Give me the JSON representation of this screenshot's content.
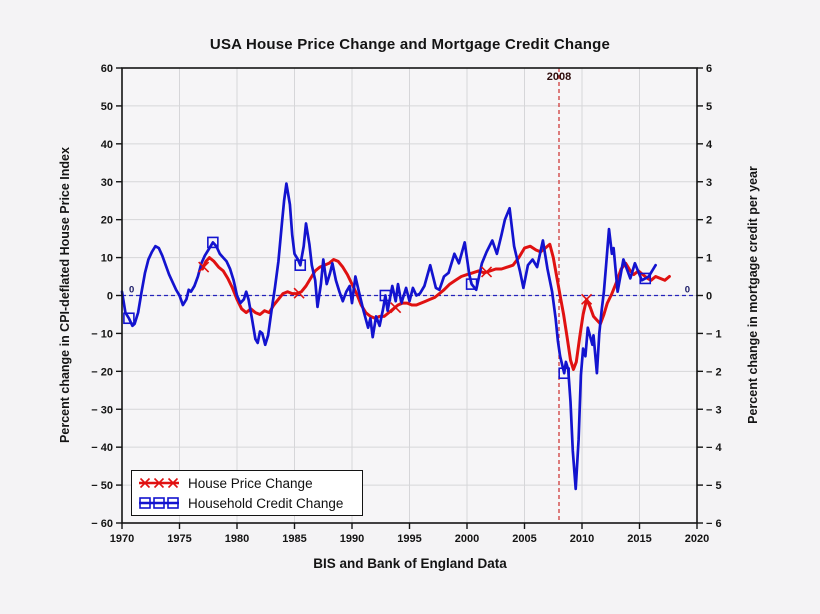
{
  "page": {
    "background": "#f4f3f5"
  },
  "chart": {
    "annotation_2008_color": "#2e0d0c",
    "frame_color": "#141414",
    "grid_color": "#d6d6d9",
    "plot_bg": "#f6f5f7"
  },
  "chart_data": {
    "type": "line",
    "title": "USA House Price Change and Mortgage Credit Change",
    "source": "BIS and Bank of England Data",
    "x_axis": {
      "min": 1970,
      "max": 2020,
      "ticks": [
        1970,
        1975,
        1980,
        1985,
        1990,
        1995,
        2000,
        2005,
        2010,
        2015,
        2020
      ]
    },
    "left_y_axis": {
      "label": "Percent change in CPI-deflated House Price Index",
      "min": -60,
      "max": 60,
      "tick_step": 10,
      "ticks": [
        60,
        50,
        40,
        30,
        20,
        10,
        0,
        -10,
        -20,
        -30,
        -40,
        -50,
        -60
      ]
    },
    "right_y_axis": {
      "label": "Percent change in mortgage credit per year",
      "min": -6,
      "max": 6,
      "tick_step": 1,
      "ticks": [
        6,
        5,
        4,
        3,
        2,
        1,
        0,
        -1,
        -2,
        -3,
        -4,
        -5,
        -6
      ]
    },
    "grid": true,
    "legend_position": "bottom-left",
    "reference_lines": [
      {
        "type": "vertical",
        "x": 2008,
        "label": "2008",
        "style": "dashed",
        "color": "#cf3a3a",
        "label_color": "#2e0d0c"
      },
      {
        "type": "horizontal",
        "y": 0,
        "style": "dashed",
        "color": "#2424bb",
        "end_label": "0",
        "end_label_color": "#1a1a66"
      }
    ],
    "series": [
      {
        "name": "House Price Change",
        "axis": "left",
        "color": "#e01111",
        "marker": "x",
        "line_width": 3,
        "points": [
          [
            1977.0,
            7.0
          ],
          [
            1977.3,
            9.0
          ],
          [
            1977.6,
            10.0
          ],
          [
            1978.0,
            9.0
          ],
          [
            1978.4,
            7.5
          ],
          [
            1978.8,
            6.5
          ],
          [
            1979.2,
            4.5
          ],
          [
            1979.6,
            2.0
          ],
          [
            1980.0,
            -1.0
          ],
          [
            1980.4,
            -3.5
          ],
          [
            1980.8,
            -4.5
          ],
          [
            1981.2,
            -3.5
          ],
          [
            1981.6,
            -4.5
          ],
          [
            1982.0,
            -5.0
          ],
          [
            1982.4,
            -4.0
          ],
          [
            1982.8,
            -4.5
          ],
          [
            1983.2,
            -2.5
          ],
          [
            1983.6,
            -1.0
          ],
          [
            1984.0,
            0.5
          ],
          [
            1984.4,
            1.0
          ],
          [
            1984.8,
            0.5
          ],
          [
            1985.2,
            0.5
          ],
          [
            1985.6,
            1.0
          ],
          [
            1986.0,
            2.5
          ],
          [
            1986.4,
            4.5
          ],
          [
            1986.8,
            6.5
          ],
          [
            1987.2,
            7.5
          ],
          [
            1987.6,
            8.0
          ],
          [
            1988.0,
            8.5
          ],
          [
            1988.4,
            9.5
          ],
          [
            1988.8,
            9.0
          ],
          [
            1989.2,
            7.5
          ],
          [
            1989.6,
            5.5
          ],
          [
            1990.0,
            3.0
          ],
          [
            1990.4,
            0.5
          ],
          [
            1990.8,
            -2.5
          ],
          [
            1991.2,
            -4.5
          ],
          [
            1991.6,
            -5.5
          ],
          [
            1992.0,
            -6.0
          ],
          [
            1992.4,
            -5.5
          ],
          [
            1992.8,
            -5.5
          ],
          [
            1993.2,
            -4.5
          ],
          [
            1993.6,
            -3.5
          ],
          [
            1994.0,
            -2.5
          ],
          [
            1994.4,
            -2.0
          ],
          [
            1994.8,
            -2.0
          ],
          [
            1995.2,
            -2.5
          ],
          [
            1995.6,
            -2.5
          ],
          [
            1996.0,
            -2.0
          ],
          [
            1996.4,
            -1.5
          ],
          [
            1996.8,
            -1.0
          ],
          [
            1997.2,
            -0.5
          ],
          [
            1997.6,
            0.5
          ],
          [
            1998.0,
            1.5
          ],
          [
            1998.5,
            3.0
          ],
          [
            1999.0,
            4.0
          ],
          [
            1999.5,
            5.0
          ],
          [
            2000.0,
            5.5
          ],
          [
            2000.5,
            6.0
          ],
          [
            2001.0,
            6.5
          ],
          [
            2001.5,
            6.0
          ],
          [
            2002.0,
            6.5
          ],
          [
            2002.5,
            7.0
          ],
          [
            2003.0,
            7.0
          ],
          [
            2003.5,
            7.5
          ],
          [
            2004.0,
            8.0
          ],
          [
            2004.5,
            10.0
          ],
          [
            2005.0,
            12.5
          ],
          [
            2005.5,
            13.0
          ],
          [
            2006.0,
            12.0
          ],
          [
            2006.4,
            11.5
          ],
          [
            2006.8,
            12.5
          ],
          [
            2007.2,
            13.5
          ],
          [
            2007.5,
            10.0
          ],
          [
            2007.8,
            5.0
          ],
          [
            2008.1,
            0.0
          ],
          [
            2008.4,
            -5.0
          ],
          [
            2008.7,
            -11.0
          ],
          [
            2009.0,
            -17.0
          ],
          [
            2009.25,
            -19.5
          ],
          [
            2009.5,
            -17.5
          ],
          [
            2009.8,
            -11.0
          ],
          [
            2010.1,
            -5.0
          ],
          [
            2010.4,
            -1.0
          ],
          [
            2010.7,
            -3.0
          ],
          [
            2011.0,
            -5.5
          ],
          [
            2011.3,
            -6.5
          ],
          [
            2011.6,
            -7.5
          ],
          [
            2011.9,
            -5.0
          ],
          [
            2012.2,
            -2.0
          ],
          [
            2012.6,
            0.5
          ],
          [
            2013.0,
            3.5
          ],
          [
            2013.4,
            7.0
          ],
          [
            2013.8,
            8.5
          ],
          [
            2014.2,
            6.5
          ],
          [
            2014.5,
            5.5
          ],
          [
            2014.9,
            6.5
          ],
          [
            2015.3,
            5.5
          ],
          [
            2015.7,
            4.5
          ],
          [
            2016.0,
            4.0
          ],
          [
            2016.4,
            5.0
          ],
          [
            2016.8,
            4.5
          ],
          [
            2017.2,
            4.0
          ],
          [
            2017.6,
            5.0
          ]
        ],
        "marker_points": [
          [
            1977.1,
            7.5
          ],
          [
            1985.4,
            0.6
          ],
          [
            1993.8,
            -3.2
          ],
          [
            2001.7,
            6.2
          ],
          [
            2010.4,
            -1.0
          ]
        ]
      },
      {
        "name": "Household Credit Change",
        "axis": "right",
        "color": "#1313cf",
        "marker": "square",
        "line_width": 2.7,
        "points": [
          [
            1970.0,
            0.1
          ],
          [
            1970.3,
            -0.45
          ],
          [
            1970.6,
            -0.6
          ],
          [
            1970.9,
            -0.8
          ],
          [
            1971.1,
            -0.75
          ],
          [
            1971.4,
            -0.45
          ],
          [
            1971.7,
            0.1
          ],
          [
            1972.0,
            0.6
          ],
          [
            1972.3,
            0.95
          ],
          [
            1972.6,
            1.15
          ],
          [
            1972.9,
            1.3
          ],
          [
            1973.2,
            1.25
          ],
          [
            1973.5,
            1.05
          ],
          [
            1973.8,
            0.8
          ],
          [
            1974.1,
            0.55
          ],
          [
            1974.4,
            0.35
          ],
          [
            1974.7,
            0.15
          ],
          [
            1975.0,
            0.0
          ],
          [
            1975.3,
            -0.25
          ],
          [
            1975.6,
            -0.1
          ],
          [
            1975.8,
            0.15
          ],
          [
            1976.0,
            0.1
          ],
          [
            1976.3,
            0.25
          ],
          [
            1976.6,
            0.5
          ],
          [
            1976.9,
            0.85
          ],
          [
            1977.2,
            1.05
          ],
          [
            1977.5,
            1.2
          ],
          [
            1977.9,
            1.4
          ],
          [
            1978.2,
            1.3
          ],
          [
            1978.5,
            1.1
          ],
          [
            1978.8,
            1.0
          ],
          [
            1979.1,
            0.9
          ],
          [
            1979.4,
            0.7
          ],
          [
            1979.7,
            0.4
          ],
          [
            1980.0,
            0.0
          ],
          [
            1980.3,
            -0.2
          ],
          [
            1980.6,
            -0.1
          ],
          [
            1980.8,
            0.1
          ],
          [
            1981.0,
            -0.1
          ],
          [
            1981.3,
            -0.6
          ],
          [
            1981.6,
            -1.15
          ],
          [
            1981.8,
            -1.25
          ],
          [
            1982.0,
            -0.95
          ],
          [
            1982.2,
            -1.0
          ],
          [
            1982.45,
            -1.3
          ],
          [
            1982.7,
            -1.05
          ],
          [
            1983.0,
            -0.4
          ],
          [
            1983.3,
            0.2
          ],
          [
            1983.6,
            0.9
          ],
          [
            1983.9,
            1.9
          ],
          [
            1984.1,
            2.5
          ],
          [
            1984.3,
            2.95
          ],
          [
            1984.6,
            2.4
          ],
          [
            1984.8,
            1.6
          ],
          [
            1985.0,
            1.1
          ],
          [
            1985.3,
            0.95
          ],
          [
            1985.5,
            0.8
          ],
          [
            1985.8,
            1.3
          ],
          [
            1986.0,
            1.9
          ],
          [
            1986.3,
            1.35
          ],
          [
            1986.5,
            0.8
          ],
          [
            1986.8,
            0.4
          ],
          [
            1987.0,
            -0.3
          ],
          [
            1987.3,
            0.3
          ],
          [
            1987.5,
            0.95
          ],
          [
            1987.8,
            0.3
          ],
          [
            1988.1,
            0.6
          ],
          [
            1988.3,
            0.85
          ],
          [
            1988.6,
            0.4
          ],
          [
            1988.9,
            0.1
          ],
          [
            1989.2,
            -0.15
          ],
          [
            1989.5,
            0.1
          ],
          [
            1989.8,
            0.25
          ],
          [
            1990.0,
            -0.2
          ],
          [
            1990.3,
            0.5
          ],
          [
            1990.6,
            0.1
          ],
          [
            1991.0,
            -0.4
          ],
          [
            1991.4,
            -0.85
          ],
          [
            1991.6,
            -0.6
          ],
          [
            1991.8,
            -1.1
          ],
          [
            1992.1,
            -0.55
          ],
          [
            1992.4,
            -0.8
          ],
          [
            1992.7,
            -0.35
          ],
          [
            1992.9,
            0.0
          ],
          [
            1993.1,
            -0.4
          ],
          [
            1993.5,
            0.25
          ],
          [
            1993.8,
            -0.15
          ],
          [
            1994.0,
            0.3
          ],
          [
            1994.3,
            -0.2
          ],
          [
            1994.7,
            0.2
          ],
          [
            1995.0,
            -0.15
          ],
          [
            1995.3,
            0.2
          ],
          [
            1995.6,
            0.0
          ],
          [
            1995.9,
            0.05
          ],
          [
            1996.3,
            0.25
          ],
          [
            1996.8,
            0.8
          ],
          [
            1997.3,
            0.2
          ],
          [
            1997.6,
            0.15
          ],
          [
            1998.0,
            0.5
          ],
          [
            1998.4,
            0.6
          ],
          [
            1998.9,
            1.1
          ],
          [
            1999.3,
            0.85
          ],
          [
            1999.8,
            1.4
          ],
          [
            2000.2,
            0.55
          ],
          [
            2000.4,
            0.3
          ],
          [
            2000.8,
            0.15
          ],
          [
            2001.3,
            0.85
          ],
          [
            2001.7,
            1.15
          ],
          [
            2002.2,
            1.45
          ],
          [
            2002.6,
            1.1
          ],
          [
            2003.0,
            1.6
          ],
          [
            2003.3,
            2.0
          ],
          [
            2003.7,
            2.3
          ],
          [
            2004.1,
            1.3
          ],
          [
            2004.6,
            0.65
          ],
          [
            2004.9,
            0.2
          ],
          [
            2005.3,
            0.8
          ],
          [
            2005.7,
            0.95
          ],
          [
            2006.1,
            0.75
          ],
          [
            2006.6,
            1.45
          ],
          [
            2007.0,
            0.7
          ],
          [
            2007.4,
            0.1
          ],
          [
            2007.7,
            -0.6
          ],
          [
            2007.9,
            -1.2
          ],
          [
            2008.1,
            -1.6
          ],
          [
            2008.45,
            -2.05
          ],
          [
            2008.6,
            -1.75
          ],
          [
            2008.8,
            -1.95
          ],
          [
            2009.0,
            -2.8
          ],
          [
            2009.2,
            -4.1
          ],
          [
            2009.45,
            -5.1
          ],
          [
            2009.7,
            -3.8
          ],
          [
            2009.9,
            -2.1
          ],
          [
            2010.1,
            -1.4
          ],
          [
            2010.3,
            -1.6
          ],
          [
            2010.5,
            -0.85
          ],
          [
            2010.9,
            -1.3
          ],
          [
            2011.0,
            -1.05
          ],
          [
            2011.3,
            -2.05
          ],
          [
            2011.5,
            -1.0
          ],
          [
            2011.7,
            -0.4
          ],
          [
            2011.9,
            0.1
          ],
          [
            2012.1,
            0.8
          ],
          [
            2012.35,
            1.75
          ],
          [
            2012.6,
            1.1
          ],
          [
            2012.75,
            1.25
          ],
          [
            2013.1,
            0.1
          ],
          [
            2013.6,
            0.95
          ],
          [
            2014.2,
            0.45
          ],
          [
            2014.6,
            0.85
          ],
          [
            2015.2,
            0.4
          ],
          [
            2015.5,
            0.45
          ],
          [
            2015.8,
            0.5
          ],
          [
            2016.1,
            0.65
          ],
          [
            2016.4,
            0.8
          ]
        ],
        "marker_points": [
          [
            1970.6,
            -0.6
          ],
          [
            1977.9,
            1.4
          ],
          [
            1985.5,
            0.8
          ],
          [
            1992.9,
            0.0
          ],
          [
            2000.4,
            0.3
          ],
          [
            2008.45,
            -2.05
          ],
          [
            2015.5,
            0.45
          ]
        ]
      }
    ]
  }
}
